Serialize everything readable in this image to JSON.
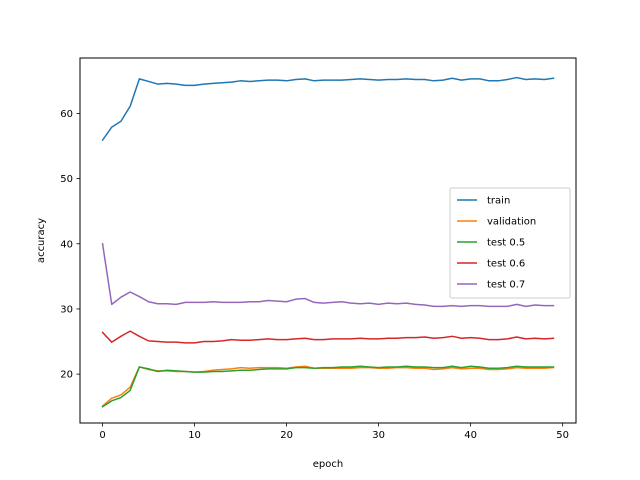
{
  "chart_data": {
    "type": "line",
    "title": "",
    "xlabel": "epoch",
    "ylabel": "accuracy",
    "xlim": [
      -2.45,
      51.45
    ],
    "ylim": [
      12.5,
      68.5
    ],
    "xticks": [
      0,
      10,
      20,
      30,
      40,
      50
    ],
    "yticks": [
      20,
      30,
      40,
      50,
      60
    ],
    "grid": false,
    "legend_position": "center-right",
    "x": [
      0,
      1,
      2,
      3,
      4,
      5,
      6,
      7,
      8,
      9,
      10,
      11,
      12,
      13,
      14,
      15,
      16,
      17,
      18,
      19,
      20,
      21,
      22,
      23,
      24,
      25,
      26,
      27,
      28,
      29,
      30,
      31,
      32,
      33,
      34,
      35,
      36,
      37,
      38,
      39,
      40,
      41,
      42,
      43,
      44,
      45,
      46,
      47,
      48,
      49
    ],
    "series": [
      {
        "name": "train",
        "color": "#1f77b4",
        "values": [
          55.9,
          57.9,
          58.8,
          61.1,
          65.3,
          64.9,
          64.5,
          64.6,
          64.5,
          64.3,
          64.3,
          64.5,
          64.6,
          64.7,
          64.8,
          65.0,
          64.9,
          65.0,
          65.1,
          65.1,
          65.0,
          65.2,
          65.3,
          65.0,
          65.1,
          65.1,
          65.1,
          65.2,
          65.3,
          65.2,
          65.1,
          65.2,
          65.2,
          65.3,
          65.2,
          65.2,
          65.0,
          65.1,
          65.4,
          65.1,
          65.3,
          65.3,
          65.0,
          65.0,
          65.2,
          65.5,
          65.2,
          65.3,
          65.2,
          65.4
        ]
      },
      {
        "name": "validation",
        "color": "#ff7f0e",
        "values": [
          15.1,
          16.3,
          16.8,
          18.0,
          21.1,
          20.7,
          20.5,
          20.5,
          20.4,
          20.4,
          20.3,
          20.4,
          20.6,
          20.7,
          20.8,
          21.0,
          20.9,
          21.0,
          21.0,
          21.0,
          20.9,
          21.1,
          21.2,
          20.9,
          20.9,
          20.9,
          20.9,
          20.9,
          21.0,
          21.0,
          20.9,
          20.9,
          21.0,
          21.0,
          20.9,
          20.9,
          20.7,
          20.8,
          21.0,
          20.8,
          20.9,
          20.9,
          20.7,
          20.7,
          20.8,
          21.0,
          20.9,
          20.9,
          20.9,
          21.0
        ]
      },
      {
        "name": "test 0.5",
        "color": "#2ca02c",
        "values": [
          15.0,
          15.9,
          16.4,
          17.5,
          21.1,
          20.8,
          20.4,
          20.6,
          20.5,
          20.4,
          20.3,
          20.3,
          20.4,
          20.4,
          20.5,
          20.6,
          20.6,
          20.7,
          20.8,
          20.8,
          20.8,
          21.0,
          21.0,
          20.9,
          21.0,
          21.0,
          21.1,
          21.1,
          21.2,
          21.1,
          21.0,
          21.1,
          21.1,
          21.2,
          21.1,
          21.1,
          21.0,
          21.0,
          21.2,
          21.0,
          21.2,
          21.1,
          20.9,
          20.9,
          21.0,
          21.2,
          21.1,
          21.1,
          21.1,
          21.1
        ]
      },
      {
        "name": "test 0.6",
        "color": "#d62728",
        "values": [
          26.4,
          24.9,
          25.8,
          26.6,
          25.8,
          25.1,
          25.0,
          24.9,
          24.9,
          24.8,
          24.8,
          25.0,
          25.0,
          25.1,
          25.3,
          25.2,
          25.2,
          25.3,
          25.4,
          25.3,
          25.3,
          25.4,
          25.5,
          25.3,
          25.3,
          25.4,
          25.4,
          25.4,
          25.5,
          25.4,
          25.4,
          25.5,
          25.5,
          25.6,
          25.6,
          25.7,
          25.5,
          25.6,
          25.8,
          25.5,
          25.6,
          25.5,
          25.3,
          25.3,
          25.4,
          25.7,
          25.4,
          25.5,
          25.4,
          25.5
        ]
      },
      {
        "name": "test 0.7",
        "color": "#9467bd",
        "values": [
          40.0,
          30.7,
          31.8,
          32.6,
          31.9,
          31.1,
          30.8,
          30.8,
          30.7,
          31.0,
          31.0,
          31.0,
          31.1,
          31.0,
          31.0,
          31.0,
          31.1,
          31.1,
          31.3,
          31.2,
          31.1,
          31.5,
          31.6,
          31.0,
          30.9,
          31.0,
          31.1,
          30.9,
          30.8,
          30.9,
          30.7,
          30.9,
          30.8,
          30.9,
          30.7,
          30.6,
          30.4,
          30.4,
          30.5,
          30.4,
          30.5,
          30.5,
          30.4,
          30.4,
          30.4,
          30.7,
          30.4,
          30.6,
          30.5,
          30.5
        ]
      }
    ]
  }
}
